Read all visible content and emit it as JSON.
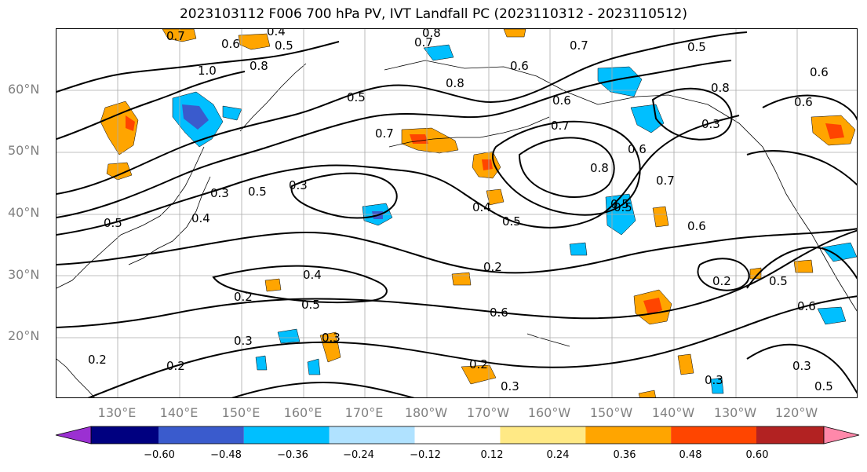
{
  "title": "2023103112 F006 700 hPa PV, IVT Landfall PC (2023110312 - 2023110512)",
  "latitude_labels": [
    "60°N",
    "50°N",
    "40°N",
    "30°N",
    "20°N"
  ],
  "longitude_labels": [
    "130°E",
    "140°E",
    "150°E",
    "160°E",
    "170°E",
    "180°W",
    "170°W",
    "160°W",
    "150°W",
    "140°W",
    "130°W",
    "120°W"
  ],
  "colorbar": {
    "colors": [
      "#9b30d2",
      "#000080",
      "#3a5bcd",
      "#00bfff",
      "#b0e2ff",
      "#ffffff",
      "#ffe985",
      "#ffa500",
      "#ff4500",
      "#b22222",
      "#ff88aa"
    ],
    "tick_labels": [
      "−0.60",
      "−0.48",
      "−0.36",
      "−0.24",
      "−0.12",
      "0.12",
      "0.24",
      "0.36",
      "0.48",
      "0.60"
    ]
  },
  "contour_labels": [
    "0.7",
    "0.4",
    "0.5",
    "0.6",
    "0.8",
    "1.0",
    "0.7",
    "0.8",
    "0.7",
    "0.6",
    "0.8",
    "0.5",
    "0.7",
    "0.6",
    "0.5",
    "0.6",
    "0.7",
    "0.8",
    "0.6",
    "0.5",
    "0.7",
    "0.6",
    "0.8",
    "0.3",
    "0.5",
    "0.3",
    "0.4",
    "0.3",
    "0.5",
    "0.4",
    "0.5",
    "0.5",
    "0.6",
    "0.4",
    "0.2",
    "0.5",
    "0.6",
    "0.3",
    "0.3",
    "0.2",
    "0.3",
    "0.2",
    "0.2",
    "0.2",
    "0.3",
    "0.5",
    "0.2",
    "0.3",
    "0.6",
    "0.5"
  ]
}
